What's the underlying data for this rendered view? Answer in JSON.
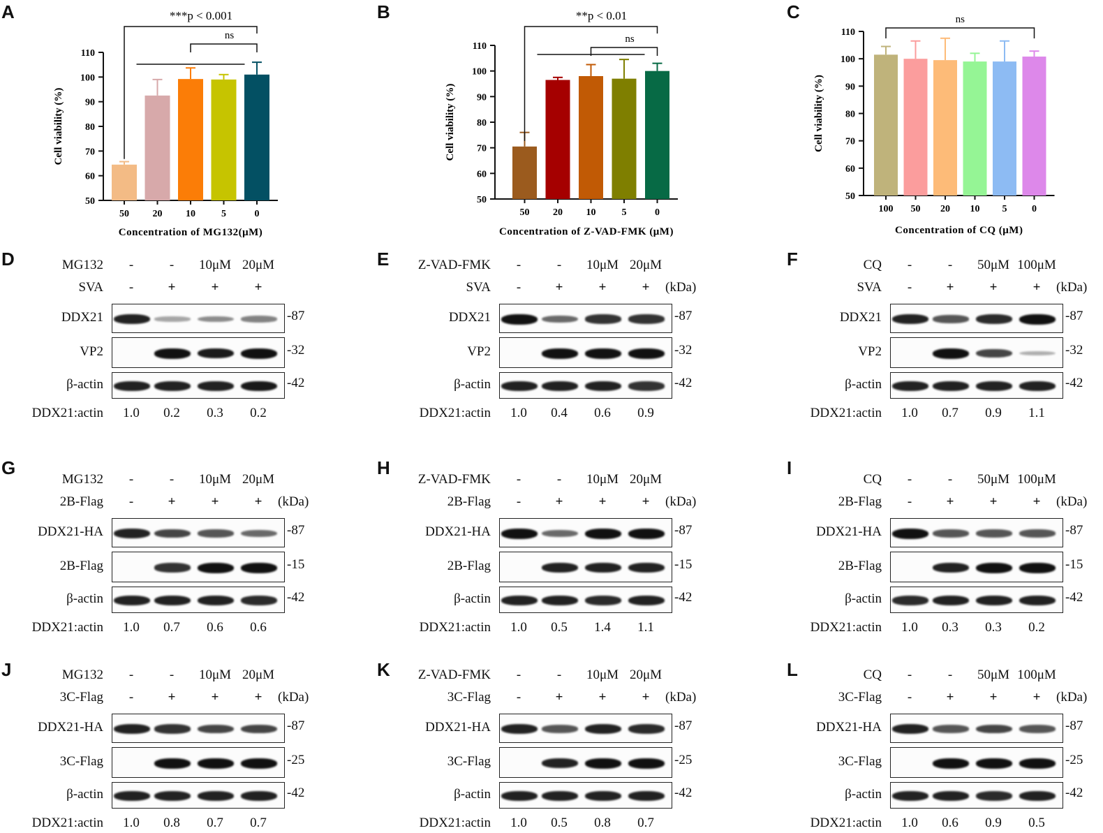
{
  "panels": [
    "A",
    "B",
    "C",
    "D",
    "E",
    "F",
    "G",
    "H",
    "I",
    "J",
    "K",
    "L"
  ],
  "chart_data": [
    {
      "type": "bar",
      "ylabel": "Cell viability (%)",
      "xlabel": "Concentration of MG132(μM)",
      "categories": [
        "50",
        "20",
        "10",
        "5",
        "0"
      ],
      "values": [
        64.5,
        92.5,
        99.2,
        99.0,
        101.0
      ],
      "errors": [
        1.2,
        6.5,
        4.5,
        2.0,
        5.0
      ],
      "colors": [
        "#f3bb85",
        "#d7a9aa",
        "#fb7d07",
        "#c6c400",
        "#035063"
      ],
      "ylim": [
        50,
        110
      ],
      "yticks": [
        "50",
        "60",
        "70",
        "80",
        "90",
        "100",
        "110"
      ],
      "sig_top": "***p < 0.001",
      "sig_mid": "ns"
    },
    {
      "type": "bar",
      "ylabel": "Cell viability (%)",
      "xlabel": "Concentration of Z-VAD-FMK (μM)",
      "categories": [
        "50",
        "20",
        "10",
        "5",
        "0"
      ],
      "values": [
        70.5,
        96.5,
        98.0,
        97.0,
        100.0
      ],
      "errors": [
        5.5,
        1.0,
        4.5,
        7.5,
        3.0
      ],
      "colors": [
        "#9b5b1e",
        "#a50000",
        "#c15a05",
        "#7f7f00",
        "#076a45"
      ],
      "ylim": [
        50,
        110
      ],
      "yticks": [
        "50",
        "60",
        "70",
        "80",
        "90",
        "100",
        "110"
      ],
      "sig_top": "**p < 0.01",
      "sig_mid": "ns"
    },
    {
      "type": "bar",
      "ylabel": "Cell viability (%)",
      "xlabel": "Concentration of CQ (μM)",
      "categories": [
        "100",
        "50",
        "20",
        "10",
        "5",
        "0"
      ],
      "values": [
        101.5,
        100.0,
        99.5,
        99.0,
        99.0,
        100.8
      ],
      "errors": [
        3.0,
        6.5,
        8.0,
        3.0,
        7.5,
        2.0
      ],
      "colors": [
        "#bfb37b",
        "#fb9d9d",
        "#fdbb78",
        "#95f595",
        "#8dbbf3",
        "#dd88ea"
      ],
      "ylim": [
        50,
        110
      ],
      "yticks": [
        "50",
        "60",
        "70",
        "80",
        "90",
        "100",
        "110"
      ],
      "sig_top": "ns",
      "sig_mid": ""
    }
  ],
  "blots": [
    {
      "rows": [
        {
          "label": "MG132",
          "vals": [
            "-",
            "-",
            "10μM",
            "20μM"
          ]
        },
        {
          "label": "SVA",
          "vals": [
            "-",
            "+",
            "+",
            "+"
          ]
        }
      ],
      "kda": "",
      "bands": [
        {
          "label": "DDX21",
          "mw": "-87",
          "intens": [
            0.9,
            0.15,
            0.3,
            0.35
          ]
        },
        {
          "label": "VP2",
          "mw": "-32",
          "intens": [
            0,
            1,
            0.95,
            1
          ]
        },
        {
          "label": "β-actin",
          "mw": "-42",
          "intens": [
            0.9,
            0.9,
            0.9,
            0.95
          ]
        }
      ],
      "ratio_label": "DDX21:actin",
      "ratios": [
        "1.0",
        "0.2",
        "0.3",
        "0.2"
      ]
    },
    {
      "rows": [
        {
          "label": "Z-VAD-FMK",
          "vals": [
            "-",
            "-",
            "10μM",
            "20μM"
          ]
        },
        {
          "label": "SVA",
          "vals": [
            "-",
            "+",
            "+",
            "+"
          ]
        }
      ],
      "kda": "(kDa)",
      "bands": [
        {
          "label": "DDX21",
          "mw": "-87",
          "intens": [
            1,
            0.5,
            0.8,
            0.8
          ]
        },
        {
          "label": "VP2",
          "mw": "-32",
          "intens": [
            0,
            1,
            1,
            1
          ]
        },
        {
          "label": "β-actin",
          "mw": "-42",
          "intens": [
            0.9,
            0.9,
            0.9,
            0.8
          ]
        }
      ],
      "ratio_label": "DDX21:actin",
      "ratios": [
        "1.0",
        "0.4",
        "0.6",
        "0.9"
      ]
    },
    {
      "rows": [
        {
          "label": "CQ",
          "vals": [
            "-",
            "-",
            "50μM",
            "100μM"
          ]
        },
        {
          "label": "SVA",
          "vals": [
            "-",
            "+",
            "+",
            "+"
          ]
        }
      ],
      "kda": "(kDa)",
      "bands": [
        {
          "label": "DDX21",
          "mw": "-87",
          "intens": [
            0.9,
            0.6,
            0.85,
            1
          ]
        },
        {
          "label": "VP2",
          "mw": "-32",
          "intens": [
            0,
            1,
            0.7,
            0.1
          ]
        },
        {
          "label": "β-actin",
          "mw": "-42",
          "intens": [
            0.9,
            0.9,
            0.9,
            0.9
          ]
        }
      ],
      "ratio_label": "DDX21:actin",
      "ratios": [
        "1.0",
        "0.7",
        "0.9",
        "1.1"
      ]
    },
    {
      "rows": [
        {
          "label": "MG132",
          "vals": [
            "-",
            "-",
            "10μM",
            "20μM"
          ]
        },
        {
          "label": "2B-Flag",
          "vals": [
            "-",
            "+",
            "+",
            "+"
          ]
        }
      ],
      "kda": "(kDa)",
      "bands": [
        {
          "label": "DDX21-HA",
          "mw": "-87",
          "intens": [
            0.9,
            0.7,
            0.6,
            0.5
          ]
        },
        {
          "label": "2B-Flag",
          "mw": "-15",
          "intens": [
            0,
            0.8,
            1,
            1
          ]
        },
        {
          "label": "β-actin",
          "mw": "-42",
          "intens": [
            0.9,
            0.9,
            0.9,
            0.85
          ]
        }
      ],
      "ratio_label": "DDX21:actin",
      "ratios": [
        "1.0",
        "0.7",
        "0.6",
        "0.6"
      ]
    },
    {
      "rows": [
        {
          "label": "Z-VAD-FMK",
          "vals": [
            "-",
            "-",
            "10μM",
            "20μM"
          ]
        },
        {
          "label": "2B-Flag",
          "vals": [
            "-",
            "+",
            "+",
            "+"
          ]
        }
      ],
      "kda": "(kDa)",
      "bands": [
        {
          "label": "DDX21-HA",
          "mw": "-87",
          "intens": [
            1,
            0.5,
            1,
            1
          ]
        },
        {
          "label": "2B-Flag",
          "mw": "-15",
          "intens": [
            0,
            0.9,
            0.9,
            0.9
          ]
        },
        {
          "label": "β-actin",
          "mw": "-42",
          "intens": [
            0.9,
            0.9,
            0.85,
            0.9
          ]
        }
      ],
      "ratio_label": "DDX21:actin",
      "ratios": [
        "1.0",
        "0.5",
        "1.4",
        "1.1"
      ]
    },
    {
      "rows": [
        {
          "label": "CQ",
          "vals": [
            "-",
            "-",
            "50μM",
            "100μM"
          ]
        },
        {
          "label": "2B-Flag",
          "vals": [
            "-",
            "+",
            "+",
            "+"
          ]
        }
      ],
      "kda": "(kDa)",
      "bands": [
        {
          "label": "DDX21-HA",
          "mw": "-87",
          "intens": [
            1,
            0.6,
            0.6,
            0.6
          ]
        },
        {
          "label": "2B-Flag",
          "mw": "-15",
          "intens": [
            0,
            0.9,
            1,
            1
          ]
        },
        {
          "label": "β-actin",
          "mw": "-42",
          "intens": [
            0.85,
            0.9,
            0.9,
            0.9
          ]
        }
      ],
      "ratio_label": "DDX21:actin",
      "ratios": [
        "1.0",
        "0.3",
        "0.3",
        "0.2"
      ]
    },
    {
      "rows": [
        {
          "label": "MG132",
          "vals": [
            "-",
            "-",
            "10μM",
            "20μM"
          ]
        },
        {
          "label": "3C-Flag",
          "vals": [
            "-",
            "+",
            "+",
            "+"
          ]
        }
      ],
      "kda": "(kDa)",
      "bands": [
        {
          "label": "DDX21-HA",
          "mw": "-87",
          "intens": [
            0.9,
            0.8,
            0.7,
            0.7
          ]
        },
        {
          "label": "3C-Flag",
          "mw": "-25",
          "intens": [
            0,
            1,
            1,
            1
          ]
        },
        {
          "label": "β-actin",
          "mw": "-42",
          "intens": [
            0.9,
            0.9,
            0.9,
            0.9
          ]
        }
      ],
      "ratio_label": "DDX21:actin",
      "ratios": [
        "1.0",
        "0.8",
        "0.7",
        "0.7"
      ]
    },
    {
      "rows": [
        {
          "label": "Z-VAD-FMK",
          "vals": [
            "-",
            "-",
            "10μM",
            "20μM"
          ]
        },
        {
          "label": "3C-Flag",
          "vals": [
            "-",
            "+",
            "+",
            "+"
          ]
        }
      ],
      "kda": "(kDa)",
      "bands": [
        {
          "label": "DDX21-HA",
          "mw": "-87",
          "intens": [
            0.9,
            0.6,
            0.9,
            0.85
          ]
        },
        {
          "label": "3C-Flag",
          "mw": "-25",
          "intens": [
            0,
            0.9,
            1,
            1
          ]
        },
        {
          "label": "β-actin",
          "mw": "-42",
          "intens": [
            0.9,
            0.9,
            0.9,
            0.9
          ]
        }
      ],
      "ratio_label": "DDX21:actin",
      "ratios": [
        "1.0",
        "0.5",
        "0.8",
        "0.7"
      ]
    },
    {
      "rows": [
        {
          "label": "CQ",
          "vals": [
            "-",
            "-",
            "50μM",
            "100μM"
          ]
        },
        {
          "label": "3C-Flag",
          "vals": [
            "-",
            "+",
            "+",
            "+"
          ]
        }
      ],
      "kda": "(kDa)",
      "bands": [
        {
          "label": "DDX21-HA",
          "mw": "-87",
          "intens": [
            0.9,
            0.6,
            0.7,
            0.6
          ]
        },
        {
          "label": "3C-Flag",
          "mw": "-25",
          "intens": [
            0,
            1,
            1,
            1
          ]
        },
        {
          "label": "β-actin",
          "mw": "-42",
          "intens": [
            0.9,
            0.9,
            0.85,
            0.9
          ]
        }
      ],
      "ratio_label": "DDX21:actin",
      "ratios": [
        "1.0",
        "0.6",
        "0.9",
        "0.5"
      ]
    }
  ]
}
